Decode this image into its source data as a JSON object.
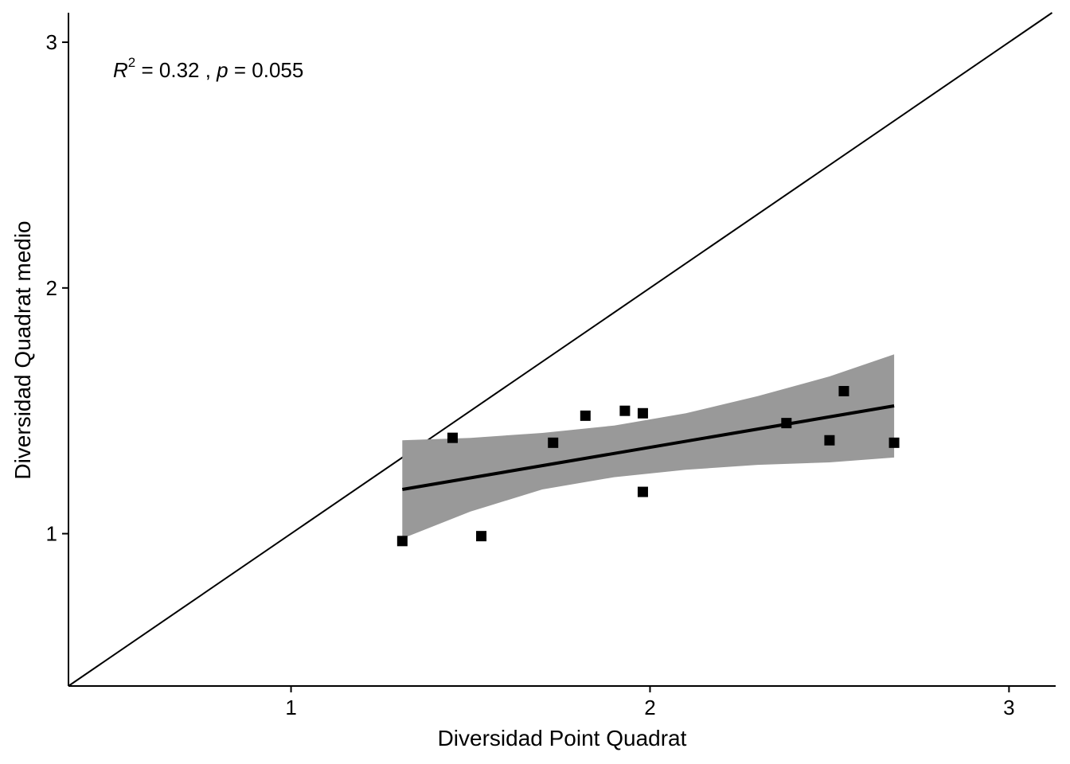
{
  "chart_data": {
    "type": "scatter",
    "xlabel": "Diversidad Point Quadrat",
    "ylabel": "Diversidad Quadrat medio",
    "xlim": [
      0.38,
      3.13
    ],
    "ylim": [
      0.38,
      3.12
    ],
    "x_ticks": [
      1,
      2,
      3
    ],
    "y_ticks": [
      1,
      2,
      3
    ],
    "x_tick_labels": [
      "1",
      "2",
      "3"
    ],
    "y_tick_labels": [
      "1",
      "2",
      "3"
    ],
    "grid": false,
    "annotation": {
      "r_symbol": "R",
      "r_exp": "2",
      "r_value": " = 0.32 , ",
      "p_symbol": "p",
      "p_value": " = 0.055"
    },
    "points": [
      {
        "x": 1.31,
        "y": 0.97
      },
      {
        "x": 1.45,
        "y": 1.39
      },
      {
        "x": 1.53,
        "y": 0.99
      },
      {
        "x": 1.73,
        "y": 1.37
      },
      {
        "x": 1.82,
        "y": 1.48
      },
      {
        "x": 1.93,
        "y": 1.5
      },
      {
        "x": 1.98,
        "y": 1.49
      },
      {
        "x": 1.98,
        "y": 1.17
      },
      {
        "x": 2.38,
        "y": 1.45
      },
      {
        "x": 2.5,
        "y": 1.38
      },
      {
        "x": 2.54,
        "y": 1.58
      },
      {
        "x": 2.68,
        "y": 1.37
      }
    ],
    "fit_line": {
      "x": [
        1.31,
        2.68
      ],
      "y": [
        1.18,
        1.52
      ]
    },
    "confidence_band": {
      "x": [
        1.31,
        1.5,
        1.7,
        1.9,
        2.1,
        2.3,
        2.5,
        2.68
      ],
      "upper": [
        1.38,
        1.39,
        1.41,
        1.44,
        1.49,
        1.56,
        1.64,
        1.73
      ],
      "lower": [
        0.98,
        1.09,
        1.18,
        1.23,
        1.26,
        1.28,
        1.29,
        1.31
      ]
    },
    "reference_line": {
      "type": "identity",
      "slope": 1,
      "intercept": 0
    },
    "colors": {
      "points": "#000000",
      "band": "#999999",
      "lines": "#000000"
    }
  }
}
